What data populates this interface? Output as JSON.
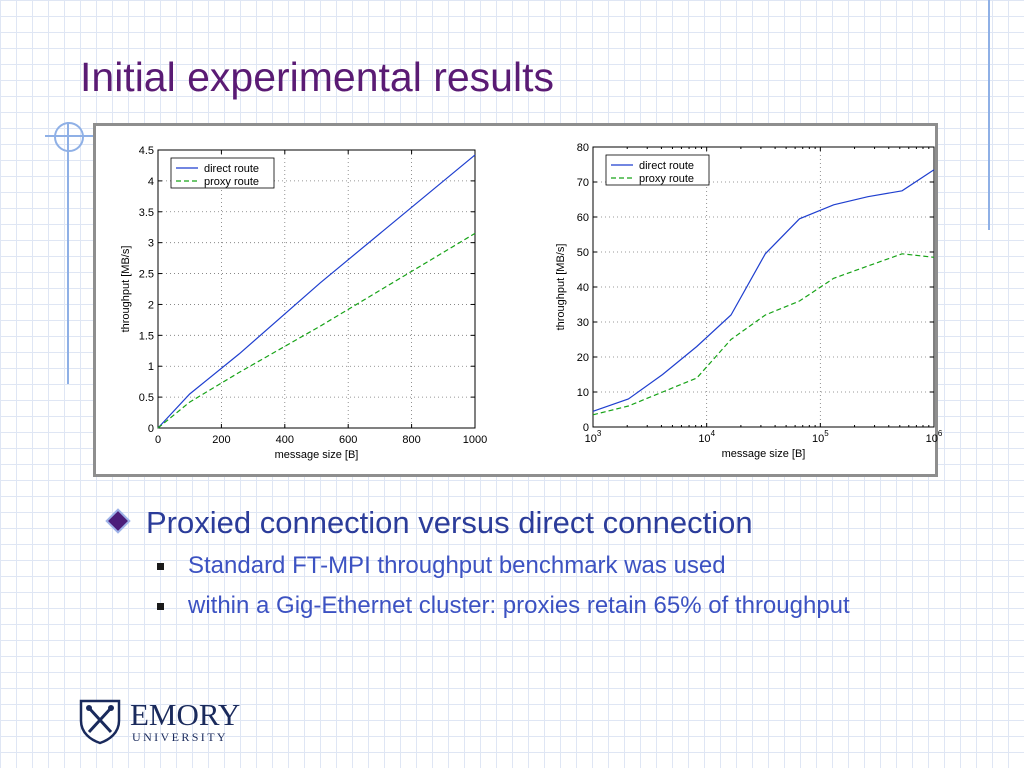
{
  "slide": {
    "title": "Initial experimental results"
  },
  "bullets": {
    "main": "Proxied connection versus direct connection",
    "sub": [
      "Standard FT-MPI throughput benchmark was used",
      "within a Gig-Ethernet cluster: proxies retain 65% of throughput"
    ]
  },
  "logo": {
    "name": "EMORY",
    "subtitle": "UNIVERSITY"
  },
  "colors": {
    "title": "#5a1b74",
    "bullet_main": "#2b3c9a",
    "bullet_sub": "#3c52c2",
    "direct": "#1f3fcf",
    "proxy": "#17a317"
  },
  "chart_data": [
    {
      "type": "line",
      "xlabel": "message size [B]",
      "ylabel": "throughput [MB/s]",
      "xlim": [
        0,
        1000
      ],
      "ylim": [
        0,
        4.5
      ],
      "xticks": [
        0,
        200,
        400,
        600,
        800,
        1000
      ],
      "yticks": [
        0,
        0.5,
        1,
        1.5,
        2,
        2.5,
        3,
        3.5,
        4,
        4.5
      ],
      "xscale": "linear",
      "grid": true,
      "legend_position": "top-left",
      "series": [
        {
          "name": "direct route",
          "style": "solid",
          "x": [
            0,
            100,
            256,
            512,
            1000
          ],
          "y": [
            0,
            0.55,
            1.2,
            2.35,
            4.42
          ]
        },
        {
          "name": "proxy route",
          "style": "dashed",
          "x": [
            0,
            100,
            256,
            512,
            1000
          ],
          "y": [
            0,
            0.42,
            0.9,
            1.65,
            3.15
          ]
        }
      ]
    },
    {
      "type": "line",
      "xlabel": "message size [B]",
      "ylabel": "throughput [MB/s]",
      "xlim": [
        1000,
        1000000
      ],
      "ylim": [
        0,
        80
      ],
      "xticks": [
        1000,
        10000,
        100000,
        1000000
      ],
      "xtick_labels": [
        [
          "10",
          "3"
        ],
        [
          "10",
          "4"
        ],
        [
          "10",
          "5"
        ],
        [
          "10",
          "6"
        ]
      ],
      "yticks": [
        0,
        10,
        20,
        30,
        40,
        50,
        60,
        70,
        80
      ],
      "xscale": "log",
      "grid": true,
      "legend_position": "top-left",
      "series": [
        {
          "name": "direct route",
          "style": "solid",
          "x": [
            1000,
            2048,
            4096,
            8192,
            16384,
            32768,
            65536,
            131072,
            262144,
            524288,
            1000000
          ],
          "y": [
            4.5,
            8,
            15,
            23,
            32,
            49.5,
            59.5,
            63.5,
            65.8,
            67.5,
            73.5
          ]
        },
        {
          "name": "proxy route",
          "style": "dashed",
          "x": [
            1000,
            2048,
            4096,
            8192,
            16384,
            32768,
            65536,
            131072,
            262144,
            524288,
            1000000
          ],
          "y": [
            3.5,
            6,
            10,
            14,
            25,
            32,
            36,
            42.5,
            46,
            49.5,
            48.5
          ]
        }
      ]
    }
  ]
}
